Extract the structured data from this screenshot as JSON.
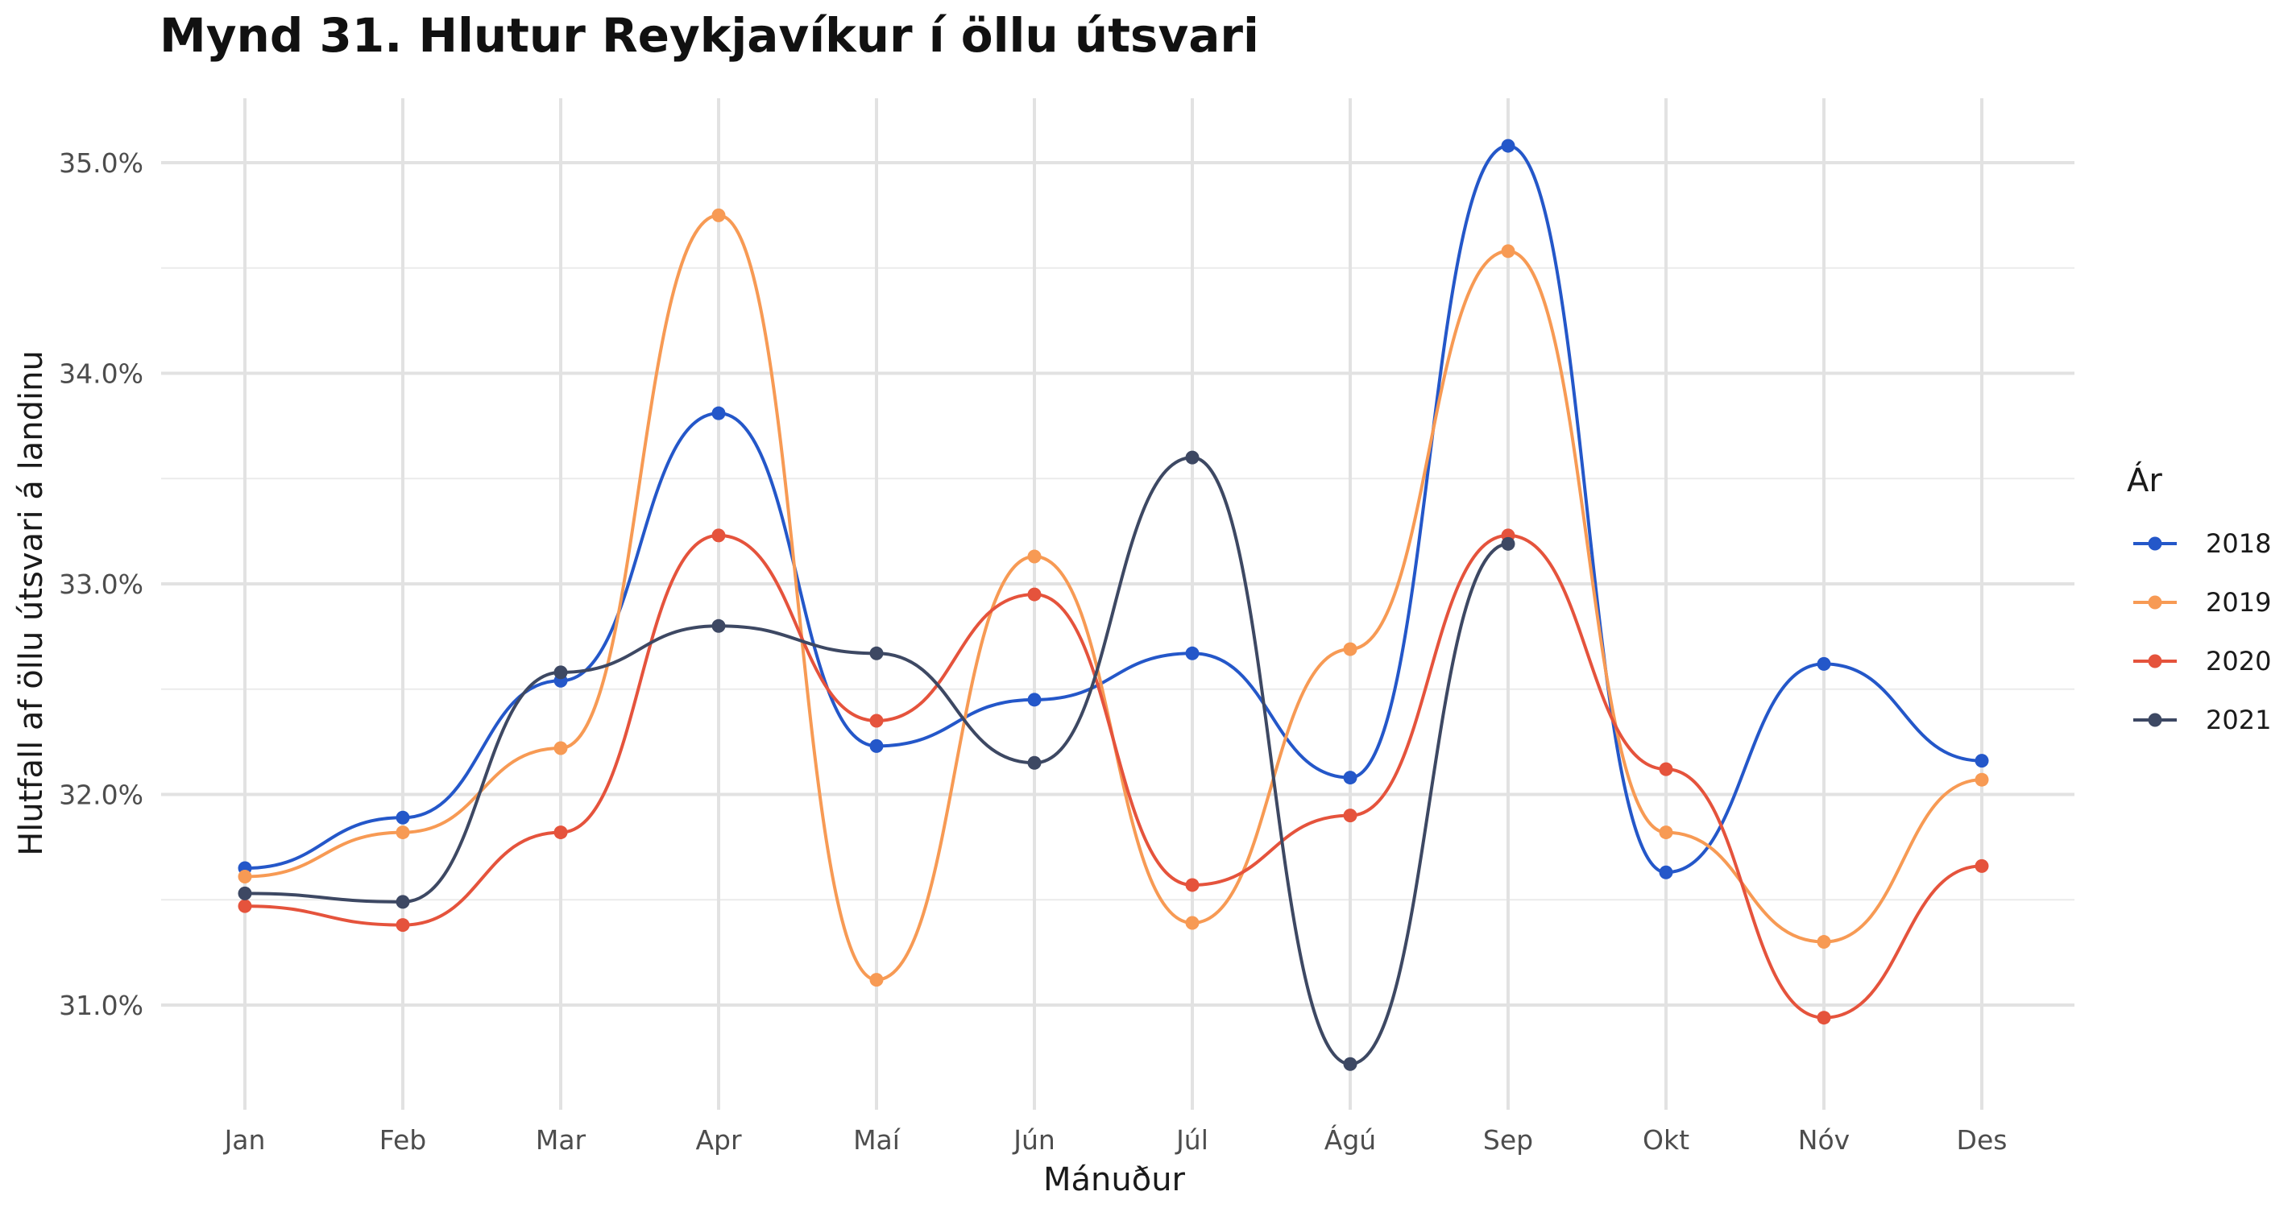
{
  "chart_data": {
    "type": "line",
    "title": "Mynd 31. Hlutur Reykjavíkur í öllu útsvari",
    "xlabel": "Mánuður",
    "ylabel": "Hlutfall af öllu útsvari á landinu",
    "categories": [
      "Jan",
      "Feb",
      "Mar",
      "Apr",
      "Maí",
      "Jún",
      "Júl",
      "Ágú",
      "Sep",
      "Okt",
      "Nóv",
      "Des"
    ],
    "ylim": [
      30.55,
      35.2
    ],
    "yticks": [
      31.0,
      32.0,
      33.0,
      34.0,
      35.0
    ],
    "ytick_labels": [
      "31.0%",
      "32.0%",
      "33.0%",
      "34.0%",
      "35.0%"
    ],
    "grid": true,
    "smoothed": true,
    "legend": {
      "title": "Ár",
      "position": "right"
    },
    "series": [
      {
        "name": "2018",
        "color": "#2457c9",
        "values": [
          31.65,
          31.89,
          32.54,
          33.81,
          32.23,
          32.45,
          32.67,
          32.08,
          35.08,
          31.63,
          32.62,
          32.16
        ]
      },
      {
        "name": "2019",
        "color": "#f79a54",
        "values": [
          31.61,
          31.82,
          32.22,
          34.75,
          31.12,
          33.13,
          31.39,
          32.69,
          34.58,
          31.82,
          31.3,
          32.07
        ]
      },
      {
        "name": "2020",
        "color": "#e5533c",
        "values": [
          31.47,
          31.38,
          31.82,
          33.23,
          32.35,
          32.95,
          31.57,
          31.9,
          33.23,
          32.12,
          30.94,
          31.66
        ]
      },
      {
        "name": "2021",
        "color": "#3d4863",
        "values": [
          31.53,
          31.49,
          32.58,
          32.8,
          32.67,
          32.15,
          33.6,
          30.72,
          33.19,
          null,
          null,
          null
        ]
      }
    ]
  }
}
